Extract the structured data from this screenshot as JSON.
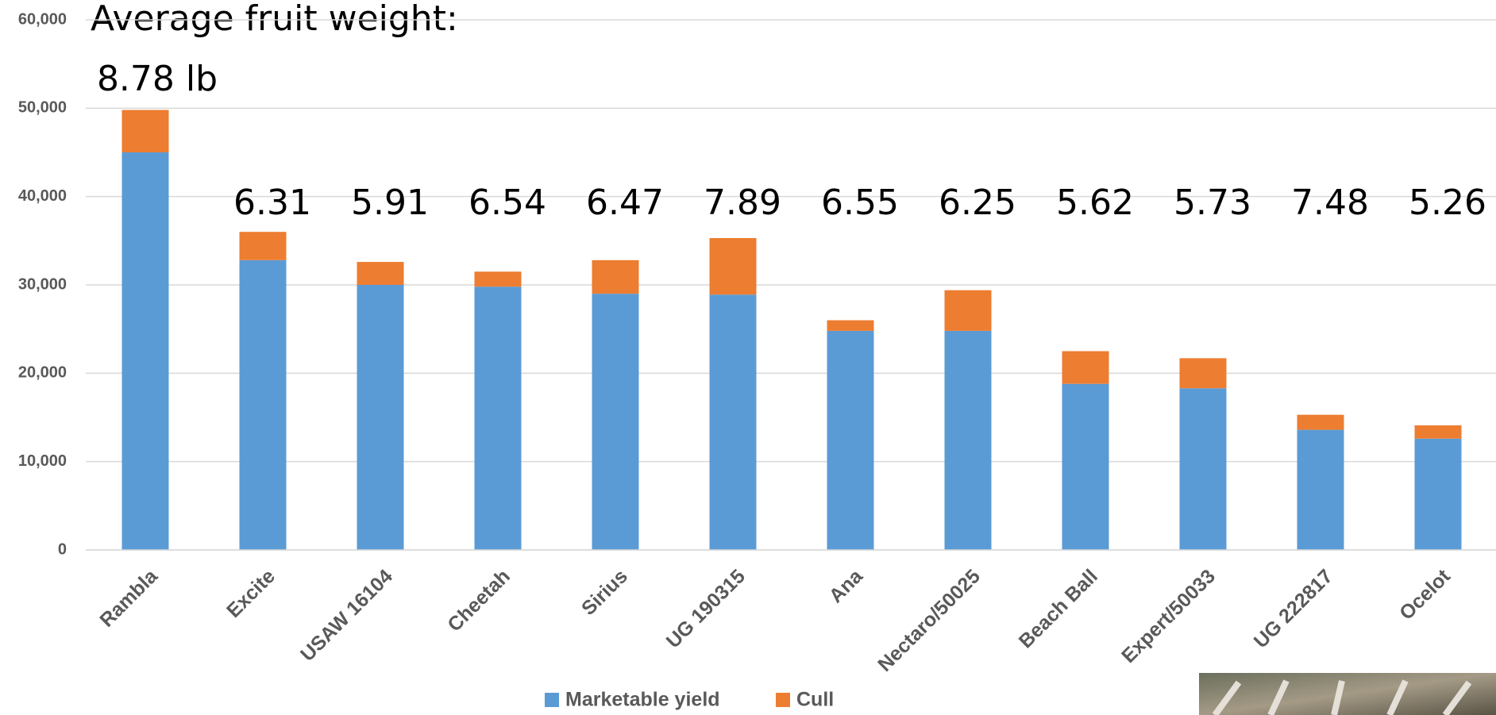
{
  "chart_data": {
    "type": "stacked_bar",
    "annotation_title": "Average fruit weight:",
    "annotation_labels": [
      "8.78 lb",
      "6.31",
      "5.91",
      "6.54",
      "6.47",
      "7.89",
      "6.55",
      "6.25",
      "5.62",
      "5.73",
      "7.48",
      "5.26"
    ],
    "categories": [
      "Rambla",
      "Excite",
      "USAW 16104",
      "Cheetah",
      "Sirius",
      "UG 190315",
      "Ana",
      "Nectaro/50025",
      "Beach Ball",
      "Expert/50033",
      "UG 222817",
      "Ocelot"
    ],
    "series": [
      {
        "name": "Marketable yield",
        "color": "#5b9bd5",
        "values": [
          45000,
          32800,
          30000,
          29800,
          29000,
          28900,
          24800,
          24800,
          18800,
          18300,
          13600,
          12600
        ]
      },
      {
        "name": "Cull",
        "color": "#ed7d31",
        "values": [
          4800,
          3200,
          2600,
          1700,
          3800,
          6400,
          1200,
          4600,
          3700,
          3400,
          1700,
          1500
        ]
      }
    ],
    "ylim": [
      0,
      60000
    ],
    "yticks": [
      0,
      {
        "value": 10000,
        "label": "10,000"
      },
      {
        "value": 20000,
        "label": "20,000"
      },
      {
        "value": 30000,
        "label": "30,000"
      },
      {
        "value": 40000,
        "label": "40,000"
      },
      {
        "value": 50000,
        "label": "50,000"
      },
      {
        "value": 60000,
        "label": "60,000"
      }
    ],
    "grid": true
  }
}
